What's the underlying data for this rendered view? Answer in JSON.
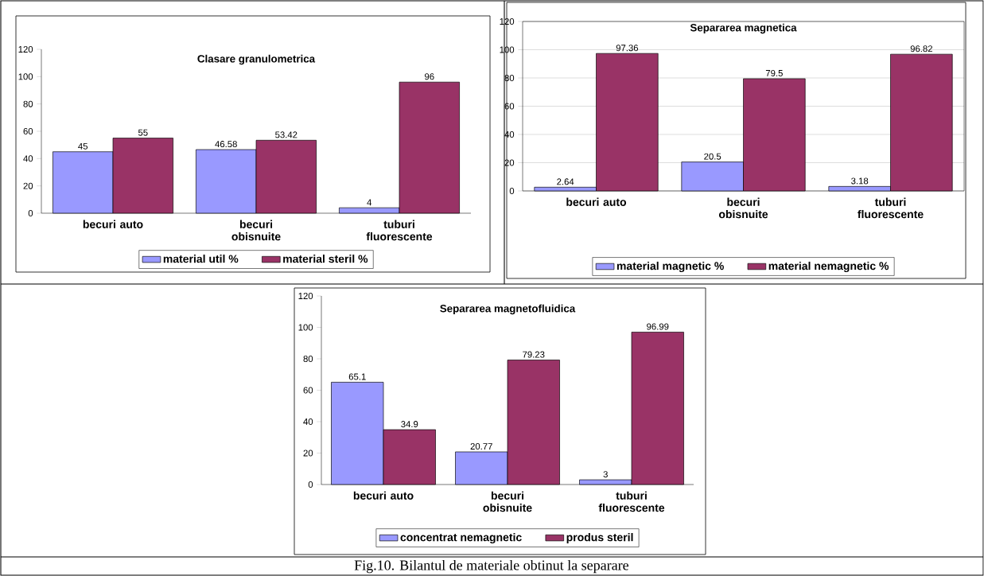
{
  "chart_data": [
    {
      "type": "bar",
      "title": "Clasare granulometrica",
      "categories": [
        "becuri auto",
        "becuri obisnuite",
        "tuburi fluorescente"
      ],
      "series": [
        {
          "name": "material util %",
          "color": "#9999ff",
          "values": [
            45,
            46.58,
            4
          ],
          "value_labels": [
            "45",
            "46.58",
            "4"
          ]
        },
        {
          "name": "material steril %",
          "color": "#993366",
          "values": [
            55,
            53.42,
            96
          ],
          "value_labels": [
            "55",
            "53.42",
            "96"
          ]
        }
      ],
      "ylim": [
        0,
        120
      ],
      "yticks": [
        0,
        20,
        40,
        60,
        80,
        100,
        120
      ],
      "legend": "bottom"
    },
    {
      "type": "bar",
      "title": "Separarea magnetica",
      "categories": [
        "becuri auto",
        "becuri obisnuite",
        "tuburi fluorescente"
      ],
      "series": [
        {
          "name": "material magnetic %",
          "color": "#9999ff",
          "values": [
            2.64,
            20.5,
            3.18
          ],
          "value_labels": [
            "2.64",
            "20.5",
            "3.18"
          ]
        },
        {
          "name": "material nemagnetic %",
          "color": "#993366",
          "values": [
            97.36,
            79.5,
            96.82
          ],
          "value_labels": [
            "97.36",
            "79.5",
            "96.82"
          ]
        }
      ],
      "ylim": [
        0,
        120
      ],
      "yticks": [
        0,
        20,
        40,
        60,
        80,
        100,
        120
      ],
      "legend": "bottom",
      "grid": "y"
    },
    {
      "type": "bar",
      "title": "Separarea magnetofluidica",
      "categories": [
        "becuri auto",
        "becuri obisnuite",
        "tuburi fluorescente"
      ],
      "series": [
        {
          "name": "concentrat nemagnetic",
          "color": "#9999ff",
          "values": [
            65.1,
            20.77,
            3
          ],
          "value_labels": [
            "65.1",
            "20.77",
            "3"
          ]
        },
        {
          "name": "produs steril",
          "color": "#993366",
          "values": [
            34.9,
            79.23,
            96.99
          ],
          "value_labels": [
            "34.9",
            "79.23",
            "96.99"
          ]
        }
      ],
      "ylim": [
        0,
        120
      ],
      "yticks": [
        0,
        20,
        40,
        60,
        80,
        100,
        120
      ],
      "legend": "bottom",
      "annotations": [
        "Fig.10. Bilantul de materiale obtinut la separare"
      ]
    }
  ]
}
